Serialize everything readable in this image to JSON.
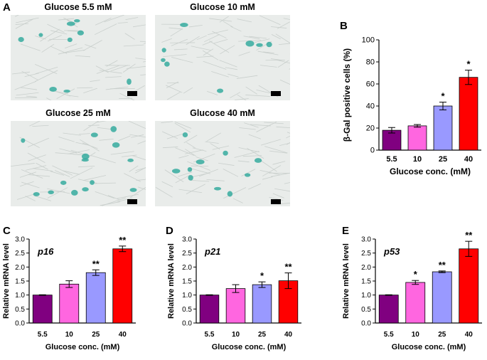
{
  "panel_letters": {
    "a": "A",
    "b": "B",
    "c": "C",
    "d": "D",
    "e": "E"
  },
  "micrographs": [
    {
      "title": "Glucose 5.5 mM"
    },
    {
      "title": "Glucose 10 mM"
    },
    {
      "title": "Glucose 25 mM"
    },
    {
      "title": "Glucose 40 mM"
    }
  ],
  "colors": {
    "bar_5_5": "#800080",
    "bar_10": "#ff66e0",
    "bar_25": "#9999ff",
    "bar_40": "#ff0000",
    "stain": "#2aa89a",
    "background": "#e9ecea"
  },
  "chart_data": [
    {
      "id": "B",
      "type": "bar",
      "categories": [
        "5.5",
        "10",
        "25",
        "40"
      ],
      "values": [
        18,
        22,
        40,
        66
      ],
      "errors": [
        2.5,
        1.2,
        3.5,
        6.5
      ],
      "significance": [
        "",
        "",
        "*",
        "*"
      ],
      "title": "",
      "xlabel": "Glucose conc. (mM)",
      "ylabel": "β-Gal positive cells (%)",
      "ylim": [
        0,
        100
      ],
      "yticks": [
        "0",
        "20",
        "40",
        "60",
        "80",
        "100"
      ]
    },
    {
      "id": "C",
      "type": "bar",
      "categories": [
        "5.5",
        "10",
        "25",
        "40"
      ],
      "values": [
        1.0,
        1.39,
        1.8,
        2.65
      ],
      "errors": [
        0.01,
        0.12,
        0.1,
        0.1
      ],
      "significance": [
        "",
        "",
        "**",
        "**"
      ],
      "title": "p16",
      "xlabel": "Glucose conc. (mM)",
      "ylabel": "Relative mRNA level",
      "ylim": [
        0,
        3.0
      ],
      "yticks": [
        "0.0",
        "0.5",
        "1.0",
        "1.5",
        "2.0",
        "2.5",
        "3.0"
      ]
    },
    {
      "id": "D",
      "type": "bar",
      "categories": [
        "5.5",
        "10",
        "25",
        "40"
      ],
      "values": [
        1.0,
        1.23,
        1.37,
        1.51
      ],
      "errors": [
        0.01,
        0.14,
        0.1,
        0.28
      ],
      "significance": [
        "",
        "",
        "*",
        "**"
      ],
      "title": "p21",
      "xlabel": "Glucose conc. (mM)",
      "ylabel": "Relative mRNA level",
      "ylim": [
        0,
        3.0
      ],
      "yticks": [
        "0.0",
        "0.5",
        "1.0",
        "1.5",
        "2.0",
        "2.5",
        "3.0"
      ]
    },
    {
      "id": "E",
      "type": "bar",
      "categories": [
        "5.5",
        "10",
        "25",
        "40"
      ],
      "values": [
        1.0,
        1.45,
        1.83,
        2.65
      ],
      "errors": [
        0.01,
        0.07,
        0.03,
        0.27
      ],
      "significance": [
        "",
        "*",
        "**",
        "**"
      ],
      "title": "p53",
      "xlabel": "Glucose conc. (mM)",
      "ylabel": "Relative mRNA level",
      "ylim": [
        0,
        3.0
      ],
      "yticks": [
        "0.0",
        "0.5",
        "1.0",
        "1.5",
        "2.0",
        "2.5",
        "3.0"
      ]
    }
  ]
}
